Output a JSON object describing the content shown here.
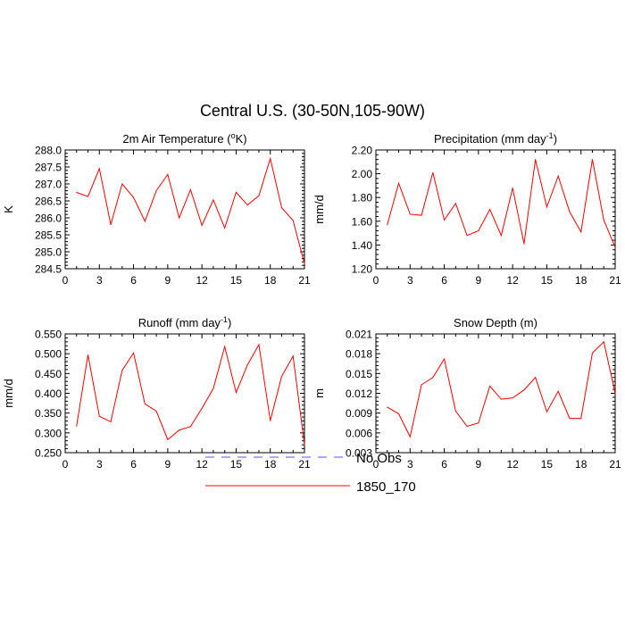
{
  "title": "Central U.S. (30-50N,105-90W)",
  "legend": [
    {
      "label": "No Obs",
      "color": "#5555ff",
      "dash": true
    },
    {
      "label": "1850_170",
      "color": "#ff0000",
      "dash": false
    }
  ],
  "chart_data": [
    {
      "type": "line",
      "title_main": "2m Air Temperature (",
      "title_sup": "o",
      "title_end": "K)",
      "ylabel": "K",
      "xlim": [
        0,
        21
      ],
      "ylim": [
        284.5,
        288.0
      ],
      "xticks": [
        "0",
        "3",
        "6",
        "9",
        "12",
        "15",
        "18",
        "21"
      ],
      "yticks": [
        "284.5",
        "285.0",
        "285.5",
        "286.0",
        "286.5",
        "287.0",
        "287.5",
        "288.0"
      ],
      "series": [
        {
          "color": "#ff0000",
          "x": [
            1,
            2,
            3,
            4,
            5,
            6,
            7,
            8,
            9,
            10,
            11,
            12,
            13,
            14,
            15,
            16,
            17,
            18,
            19,
            20,
            21
          ],
          "values": [
            286.75,
            286.63,
            287.45,
            285.8,
            287.0,
            286.6,
            285.9,
            286.8,
            287.28,
            286.0,
            286.83,
            285.78,
            286.53,
            285.7,
            286.75,
            286.38,
            286.65,
            287.75,
            286.3,
            285.92,
            284.65
          ]
        }
      ]
    },
    {
      "type": "line",
      "title_main": "Precipitation (mm day",
      "title_sup": "-1",
      "title_end": ")",
      "ylabel": "mm/d",
      "xlim": [
        0,
        21
      ],
      "ylim": [
        1.2,
        2.2
      ],
      "xticks": [
        "0",
        "3",
        "6",
        "9",
        "12",
        "15",
        "18",
        "21"
      ],
      "yticks": [
        "1.20",
        "1.40",
        "1.60",
        "1.80",
        "2.00",
        "2.20"
      ],
      "series": [
        {
          "color": "#ff0000",
          "x": [
            1,
            2,
            3,
            4,
            5,
            6,
            7,
            8,
            9,
            10,
            11,
            12,
            13,
            14,
            15,
            16,
            17,
            18,
            19,
            20,
            21
          ],
          "values": [
            1.57,
            1.92,
            1.66,
            1.65,
            2.01,
            1.61,
            1.75,
            1.48,
            1.52,
            1.7,
            1.48,
            1.88,
            1.41,
            2.12,
            1.72,
            1.98,
            1.68,
            1.51,
            2.12,
            1.61,
            1.38
          ]
        }
      ]
    },
    {
      "type": "line",
      "title_main": "Runoff (mm day",
      "title_sup": "-1",
      "title_end": ")",
      "ylabel": "mm/d",
      "xlim": [
        0,
        21
      ],
      "ylim": [
        0.25,
        0.55
      ],
      "xticks": [
        "0",
        "3",
        "6",
        "9",
        "12",
        "15",
        "18",
        "21"
      ],
      "yticks": [
        "0.250",
        "0.300",
        "0.350",
        "0.400",
        "0.450",
        "0.500",
        "0.550"
      ],
      "series": [
        {
          "color": "#ff0000",
          "x": [
            1,
            2,
            3,
            4,
            5,
            6,
            7,
            8,
            9,
            10,
            11,
            12,
            13,
            14,
            15,
            16,
            17,
            18,
            19,
            20,
            21
          ],
          "values": [
            0.317,
            0.497,
            0.342,
            0.328,
            0.458,
            0.502,
            0.373,
            0.355,
            0.283,
            0.307,
            0.316,
            0.362,
            0.412,
            0.518,
            0.402,
            0.472,
            0.523,
            0.331,
            0.443,
            0.494,
            0.27
          ]
        }
      ]
    },
    {
      "type": "line",
      "title_main": "Snow Depth (m)",
      "title_sup": "",
      "title_end": "",
      "ylabel": "m",
      "xlim": [
        0,
        21
      ],
      "ylim": [
        0.003,
        0.021
      ],
      "xticks": [
        "0",
        "3",
        "6",
        "9",
        "12",
        "15",
        "18",
        "21"
      ],
      "yticks": [
        "0.003",
        "0.006",
        "0.009",
        "0.012",
        "0.015",
        "0.018",
        "0.021"
      ],
      "series": [
        {
          "color": "#ff0000",
          "x": [
            1,
            2,
            3,
            4,
            5,
            6,
            7,
            8,
            9,
            10,
            11,
            12,
            13,
            14,
            15,
            16,
            17,
            18,
            19,
            20,
            21
          ],
          "values": [
            0.0099,
            0.0089,
            0.0054,
            0.0133,
            0.0144,
            0.0172,
            0.0093,
            0.007,
            0.0075,
            0.0131,
            0.0111,
            0.0113,
            0.0125,
            0.0144,
            0.0092,
            0.0123,
            0.0082,
            0.0082,
            0.0181,
            0.0198,
            0.012
          ]
        }
      ]
    }
  ]
}
